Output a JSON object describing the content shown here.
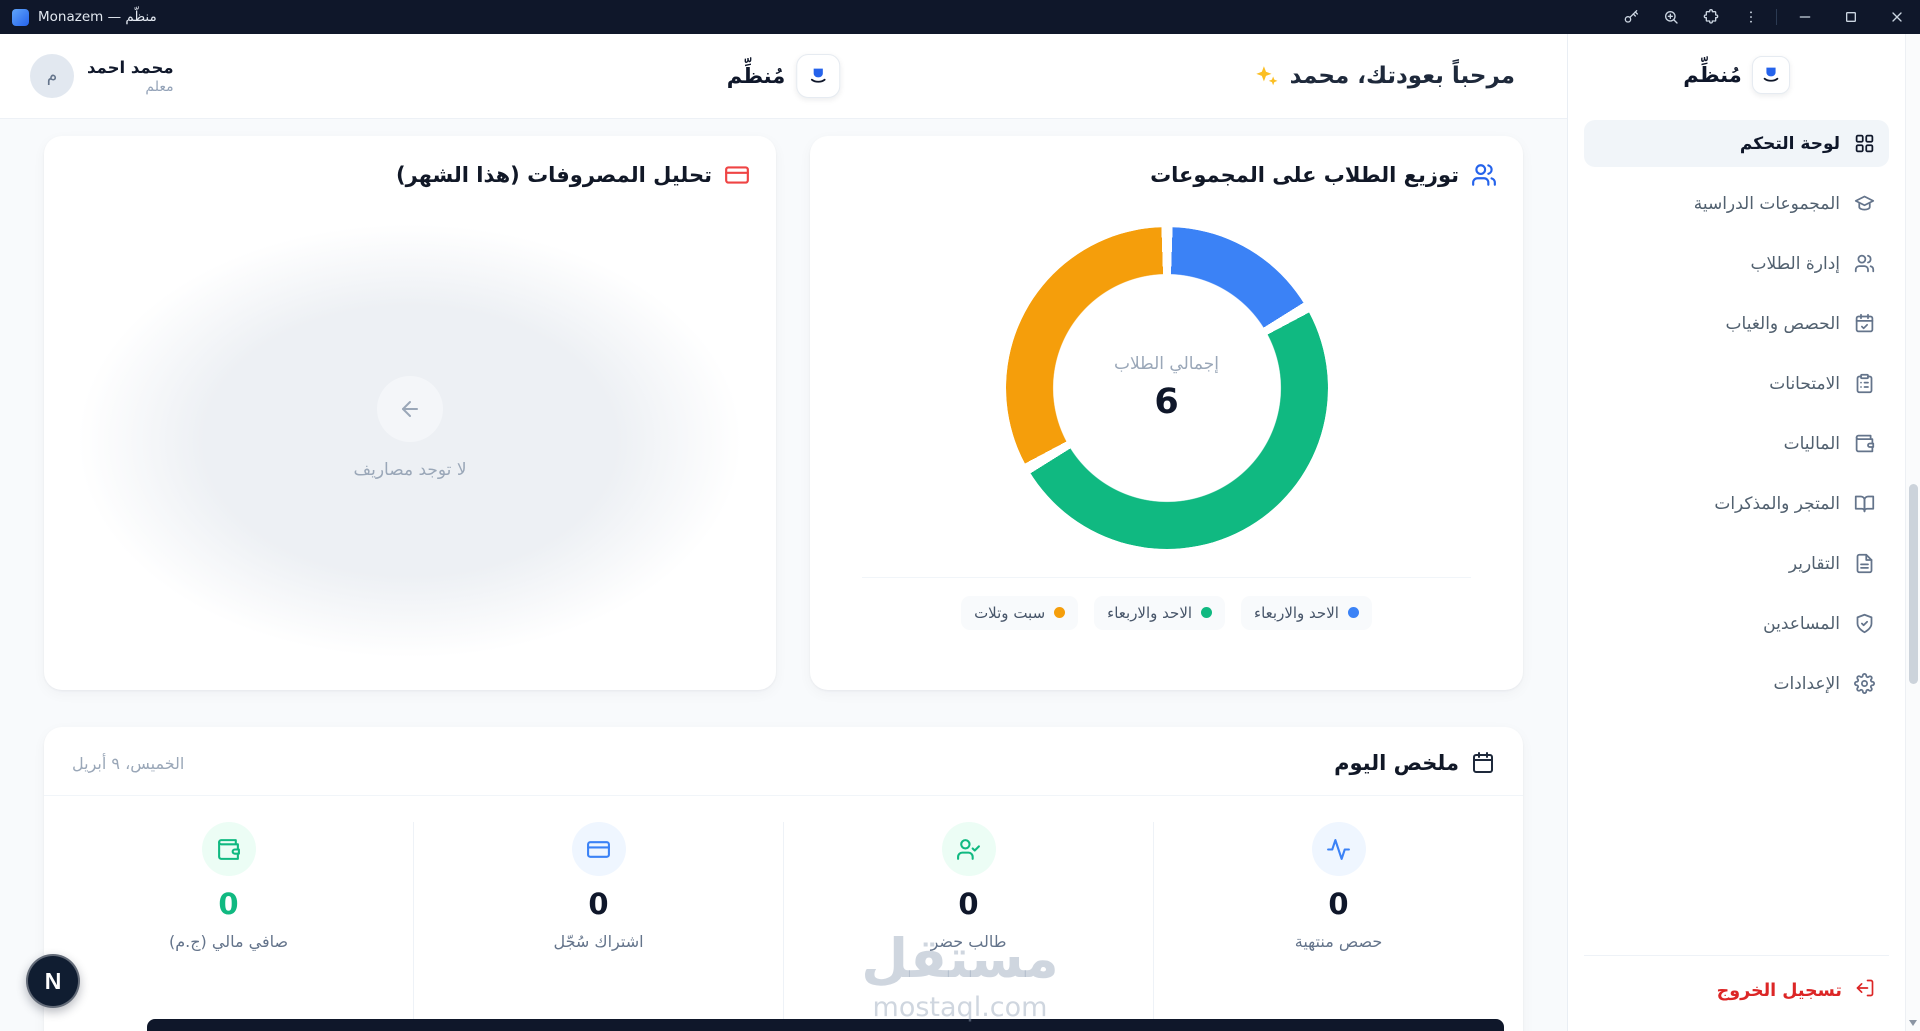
{
  "titlebar": {
    "app_title": "Monazem — منظّم"
  },
  "sidebar": {
    "logo_text": "مُنظِّم",
    "items": [
      {
        "label": "لوحة التحكم",
        "icon": "dashboard-icon",
        "active": true
      },
      {
        "label": "المجموعات الدراسية",
        "icon": "graduation-icon",
        "active": false
      },
      {
        "label": "إدارة الطلاب",
        "icon": "users-icon",
        "active": false
      },
      {
        "label": "الحصص والغياب",
        "icon": "calendar-check-icon",
        "active": false
      },
      {
        "label": "الامتحانات",
        "icon": "clipboard-icon",
        "active": false
      },
      {
        "label": "الماليات",
        "icon": "finance-icon",
        "active": false
      },
      {
        "label": "المتجر والمذكرات",
        "icon": "book-icon",
        "active": false
      },
      {
        "label": "التقارير",
        "icon": "report-icon",
        "active": false
      },
      {
        "label": "المساعدين",
        "icon": "shield-icon",
        "active": false
      },
      {
        "label": "الإعدادات",
        "icon": "settings-icon",
        "active": false
      }
    ],
    "logout_label": "تسجيل الخروج"
  },
  "header": {
    "welcome_text": "مرحباً بعودتك، محمد",
    "brand_text": "مُنظِّم",
    "user": {
      "name": "محمد احمد",
      "role": "معلم",
      "initial": "م"
    }
  },
  "chart_data": {
    "type": "pie",
    "title": "توزيع الطلاب على المجموعات",
    "center_label": "إجمالي الطلاب",
    "center_value": "6",
    "total": 6,
    "legend_position": "bottom",
    "series": [
      {
        "name": "الاحد والاربعاء",
        "value": 1,
        "color": "#3b82f6"
      },
      {
        "name": "الاحد والاربعاء",
        "value": 3,
        "color": "#10b981"
      },
      {
        "name": "سبت وتلات",
        "value": 2,
        "color": "#f59e0b"
      }
    ]
  },
  "expense_card": {
    "title": "تحليل المصروفات (هذا الشهر)",
    "empty_text": "لا توجد مصاريف"
  },
  "summary_card": {
    "title": "ملخص اليوم",
    "date": "الخميس، ٩ أبريل",
    "stats": [
      {
        "label": "حصص منتهية",
        "value": "0",
        "icon": "activity-icon",
        "theme": "blue",
        "value_colored": false
      },
      {
        "label": "طالب حضر",
        "value": "0",
        "icon": "user-check-icon",
        "theme": "green",
        "value_colored": false
      },
      {
        "label": "اشتراك سُجّل",
        "value": "0",
        "icon": "subscription-icon",
        "theme": "blue",
        "value_colored": false
      },
      {
        "label": "صافي مالي (ج.م)",
        "value": "0",
        "icon": "wallet-icon",
        "theme": "green",
        "value_colored": true
      }
    ]
  },
  "watermark": {
    "line1": "مستقل",
    "line2": "mostaql.com"
  },
  "floating_button": {
    "label": "N"
  },
  "colors": {
    "titlebar_bg": "#0f172a",
    "accent_blue": "#3b82f6",
    "accent_green": "#10b981",
    "accent_orange": "#f59e0b",
    "danger_red": "#dc2626"
  }
}
